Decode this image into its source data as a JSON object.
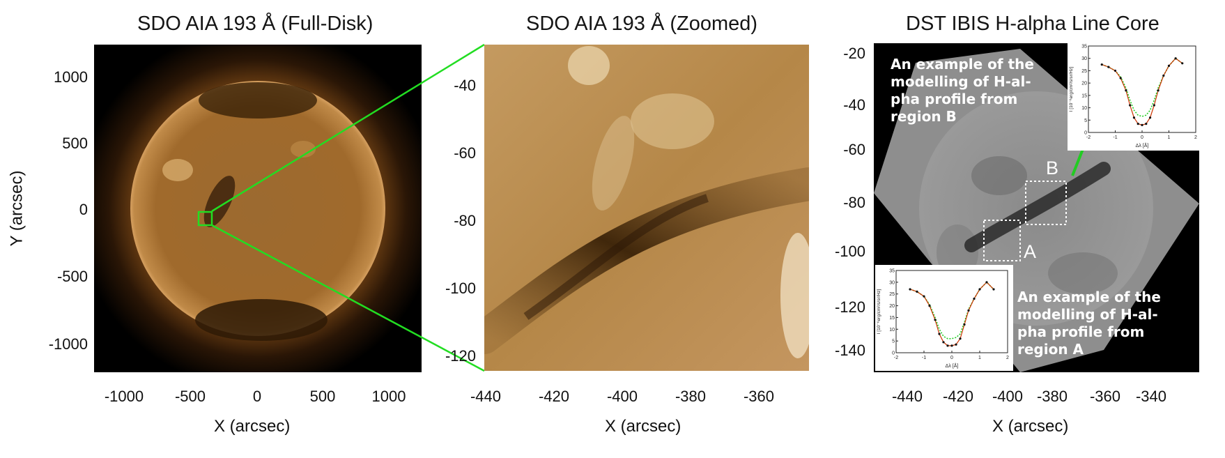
{
  "panels": {
    "full_disk": {
      "title": "SDO AIA 193 Å (Full-Disk)",
      "xlabel": "X (arcsec)",
      "ylabel": "Y (arcsec)",
      "xticks": [
        "-1000",
        "-500",
        "0",
        "500",
        "1000"
      ],
      "yticks": [
        "1000",
        "500",
        "0",
        "-500",
        "-1000"
      ]
    },
    "zoomed": {
      "title": "SDO AIA 193 Å (Zoomed)",
      "xlabel": "X (arcsec)",
      "xticks": [
        "-440",
        "-420",
        "-400",
        "-380",
        "-360"
      ],
      "yticks": [
        "-40",
        "-60",
        "-80",
        "-100",
        "-120"
      ]
    },
    "ibis": {
      "title": "DST IBIS H-alpha Line Core",
      "xlabel": "X (arcsec)",
      "xticks": [
        "-440",
        "-420",
        "-400",
        "-380",
        "-360",
        "-340"
      ],
      "yticks": [
        "-20",
        "-40",
        "-60",
        "-80",
        "-100",
        "-120",
        "-140"
      ],
      "annotation_b": [
        "An example of the",
        "modelling of H-al-",
        "pha profile from",
        "region B"
      ],
      "annotation_a": [
        "An example of the",
        "modelling of H-al-",
        "pha profile from",
        "region A"
      ],
      "region_labels": {
        "a": "A",
        "b": "B"
      }
    }
  },
  "insets": {
    "ylabel": "I [10⁻⁶erg/cm²/s/sr/Hz]",
    "xlabel": "Δλ [Å]",
    "xticks": [
      "-2",
      "-1",
      "0",
      "1",
      "2"
    ],
    "yticks": [
      "0",
      "5",
      "10",
      "15",
      "20",
      "25",
      "30",
      "35"
    ]
  },
  "colors": {
    "zoom_lines": "#22dd22",
    "aia_brown": "#a0682a",
    "inset_observed": "#111111",
    "inset_fit": "#cc3300",
    "inset_model": "#22cc22"
  },
  "chart_data": [
    {
      "type": "line",
      "name": "region B profile",
      "xlabel": "Δλ [Å]",
      "ylabel": "I [10⁻⁶erg/cm²/s/sr/Hz]",
      "xlim": [
        -2,
        2
      ],
      "ylim": [
        0,
        35
      ],
      "x": [
        -1.5,
        -1.25,
        -1.0,
        -0.8,
        -0.6,
        -0.45,
        -0.3,
        -0.15,
        0.0,
        0.15,
        0.3,
        0.45,
        0.6,
        0.8,
        1.0,
        1.25,
        1.5
      ],
      "series": [
        {
          "values": [
            27.5,
            26.5,
            25,
            22,
            17,
            11,
            6,
            3.5,
            3,
            3.5,
            6,
            11,
            17,
            23,
            27,
            30,
            28
          ]
        },
        {
          "values": [
            27.5,
            26.5,
            25,
            22.5,
            18,
            13,
            9,
            7,
            6.5,
            7,
            9,
            13,
            18,
            23,
            27,
            30,
            28
          ]
        }
      ]
    },
    {
      "type": "line",
      "name": "region A profile",
      "xlabel": "Δλ [Å]",
      "ylabel": "I [10⁻⁶erg/cm²/s/sr/Hz]",
      "xlim": [
        -2,
        2
      ],
      "ylim": [
        0,
        35
      ],
      "x": [
        -1.5,
        -1.25,
        -1.0,
        -0.8,
        -0.6,
        -0.45,
        -0.3,
        -0.15,
        0.0,
        0.15,
        0.3,
        0.45,
        0.6,
        0.8,
        1.0,
        1.25,
        1.5
      ],
      "series": [
        {
          "values": [
            27,
            26,
            24,
            20,
            14,
            8,
            4.5,
            3,
            3,
            3.5,
            6,
            12,
            18,
            23,
            27,
            30,
            27
          ]
        },
        {
          "values": [
            27,
            26,
            24,
            20.5,
            15,
            10,
            7,
            6,
            6,
            6.5,
            8,
            13,
            18.5,
            23,
            27,
            30,
            27
          ]
        }
      ]
    }
  ]
}
